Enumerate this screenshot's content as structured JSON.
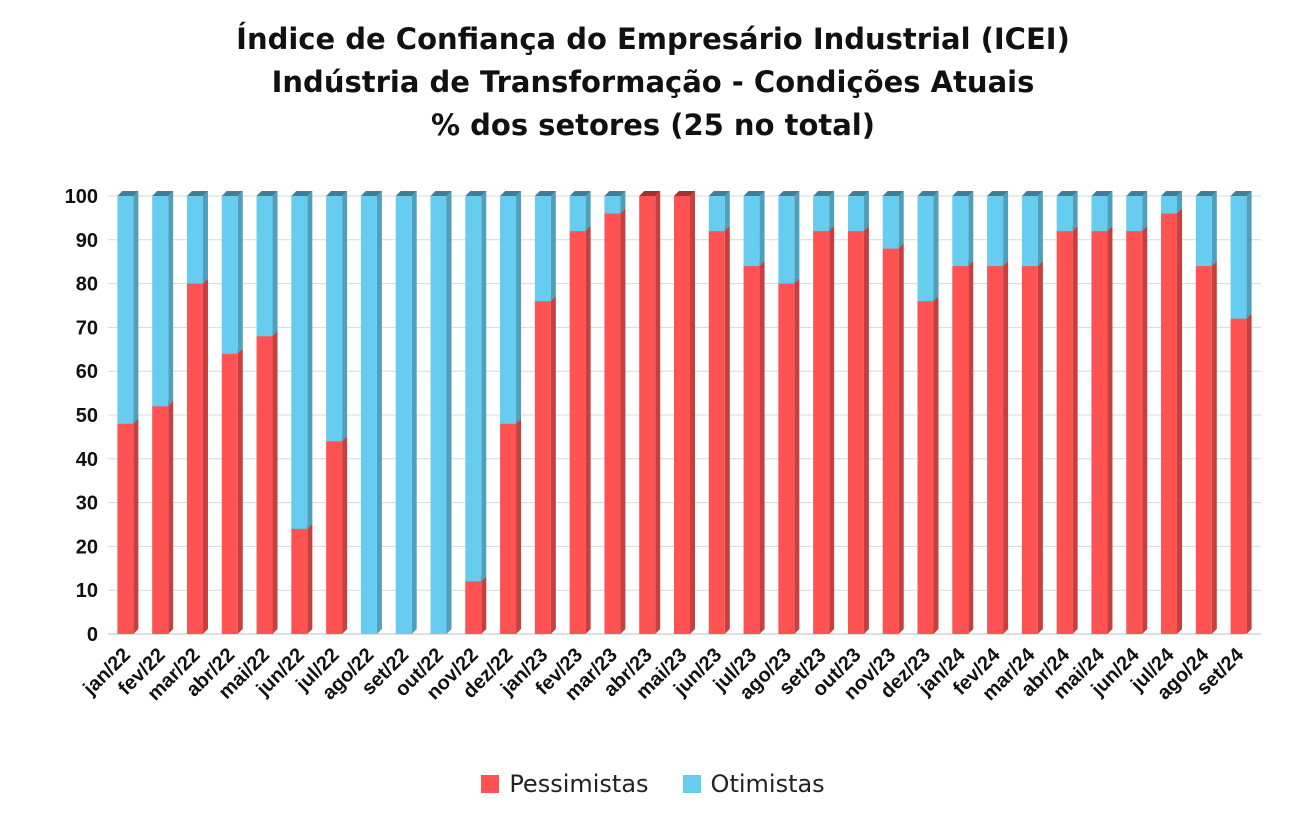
{
  "chart_data": {
    "type": "bar",
    "stacked": true,
    "title_lines": [
      "Índice de Confiança do Empresário Industrial (ICEI)",
      "Indústria de Transformação - Condições Atuais",
      "% dos setores (25 no total)"
    ],
    "categories": [
      "jan/22",
      "fev/22",
      "mar/22",
      "abr/22",
      "mai/22",
      "jun/22",
      "jul/22",
      "ago/22",
      "set/22",
      "out/22",
      "nov/22",
      "dez/22",
      "jan/23",
      "fev/23",
      "mar/23",
      "abr/23",
      "mai/23",
      "jun/23",
      "jul/23",
      "ago/23",
      "set/23",
      "out/23",
      "nov/23",
      "dez/23",
      "jan/24",
      "fev/24",
      "mar/24",
      "abr/24",
      "mai/24",
      "jun/24",
      "jul/24",
      "ago/24",
      "set/24"
    ],
    "series": [
      {
        "name": "Pessimistas",
        "color": "#ff5252",
        "values": [
          48,
          52,
          80,
          64,
          68,
          24,
          44,
          0,
          0,
          0,
          12,
          48,
          76,
          92,
          96,
          100,
          100,
          92,
          84,
          80,
          92,
          92,
          88,
          76,
          84,
          84,
          84,
          92,
          92,
          92,
          96,
          84,
          72
        ]
      },
      {
        "name": "Otimistas",
        "color": "#66ccf0",
        "values": [
          52,
          48,
          20,
          36,
          32,
          76,
          56,
          100,
          100,
          100,
          88,
          52,
          24,
          8,
          4,
          0,
          0,
          8,
          16,
          20,
          8,
          8,
          12,
          24,
          16,
          16,
          16,
          8,
          8,
          8,
          4,
          16,
          28
        ]
      }
    ],
    "ylim": [
      0,
      100
    ],
    "yticks": [
      0,
      10,
      20,
      30,
      40,
      50,
      60,
      70,
      80,
      90,
      100
    ],
    "grid": true,
    "legend_position": "bottom"
  }
}
